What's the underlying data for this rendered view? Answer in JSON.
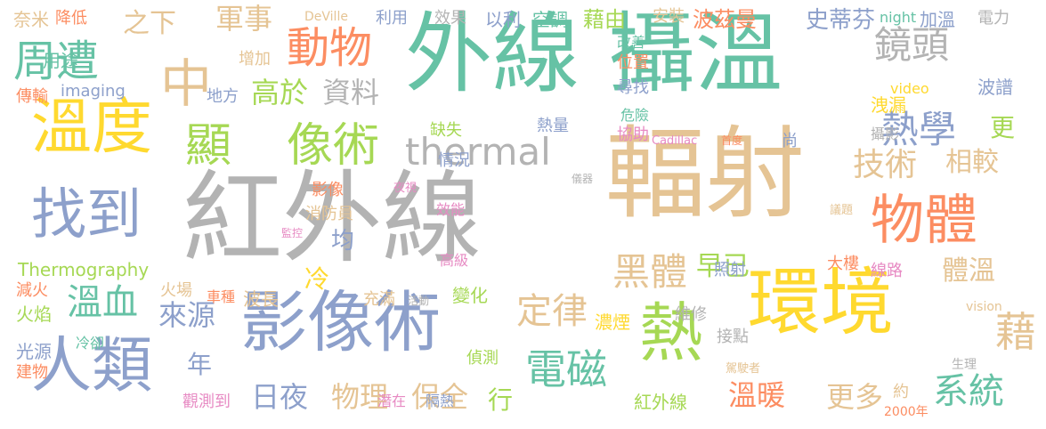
{
  "palette": {
    "green": "#66c2a5",
    "orange": "#fc8d62",
    "blue": "#8da0cb",
    "pink": "#e78ac3",
    "lime": "#a6d854",
    "yellow": "#ffd92f",
    "tan": "#e5c494",
    "gray": "#b3b3b3"
  },
  "words": [
    {
      "text": "紅外線",
      "color": "#b3b3b3"
    },
    {
      "text": "外線",
      "color": "#66c2a5"
    },
    {
      "text": "攝溫",
      "color": "#66c2a5"
    },
    {
      "text": "輻射",
      "color": "#e5c494"
    },
    {
      "text": "環境",
      "color": "#ffd92f"
    },
    {
      "text": "影像術",
      "color": "#8da0cb"
    },
    {
      "text": "人類",
      "color": "#8da0cb"
    },
    {
      "text": "溫度",
      "color": "#ffd92f"
    },
    {
      "text": "熱",
      "color": "#a6d854"
    },
    {
      "text": "物體",
      "color": "#fc8d62"
    },
    {
      "text": "找到",
      "color": "#8da0cb"
    },
    {
      "text": "中",
      "color": "#e5c494"
    },
    {
      "text": "顯",
      "color": "#a6d854"
    },
    {
      "text": "像術",
      "color": "#a6d854"
    },
    {
      "text": "thermal",
      "color": "#b3b3b3"
    },
    {
      "text": "周遭",
      "color": "#66c2a5"
    },
    {
      "text": "動物",
      "color": "#fc8d62"
    },
    {
      "text": "鏡頭",
      "color": "#b3b3b3"
    },
    {
      "text": "熱學",
      "color": "#8da0cb"
    },
    {
      "text": "技術",
      "color": "#e5c494"
    },
    {
      "text": "黑體",
      "color": "#e5c494"
    },
    {
      "text": "定律",
      "color": "#e5c494"
    },
    {
      "text": "電磁",
      "color": "#66c2a5"
    },
    {
      "text": "溫血",
      "color": "#66c2a5"
    },
    {
      "text": "系統",
      "color": "#66c2a5"
    },
    {
      "text": "軍事",
      "color": "#e5c494"
    },
    {
      "text": "高於",
      "color": "#a6d854"
    },
    {
      "text": "資料",
      "color": "#b3b3b3"
    },
    {
      "text": "來源",
      "color": "#8da0cb"
    },
    {
      "text": "日夜",
      "color": "#8da0cb"
    },
    {
      "text": "物理",
      "color": "#e5c494"
    },
    {
      "text": "保全",
      "color": "#e5c494"
    },
    {
      "text": "藉",
      "color": "#e5c494"
    },
    {
      "text": "更多",
      "color": "#e5c494"
    },
    {
      "text": "溫暖",
      "color": "#fc8d62"
    },
    {
      "text": "相較",
      "color": "#e5c494"
    },
    {
      "text": "早已",
      "color": "#a6d854"
    },
    {
      "text": "體溫",
      "color": "#e5c494"
    },
    {
      "text": "更",
      "color": "#a6d854"
    },
    {
      "text": "之下",
      "color": "#e5c494"
    },
    {
      "text": "年",
      "color": "#8da0cb"
    },
    {
      "text": "行",
      "color": "#a6d854"
    },
    {
      "text": "冷",
      "color": "#ffd92f"
    },
    {
      "text": "均",
      "color": "#8da0cb"
    },
    {
      "text": "奈米",
      "color": "#e5c494"
    },
    {
      "text": "降低",
      "color": "#fc8d62"
    },
    {
      "text": "DeVille",
      "color": "#e5c494"
    },
    {
      "text": "利用",
      "color": "#8da0cb"
    },
    {
      "text": "效果",
      "color": "#b3b3b3"
    },
    {
      "text": "以利",
      "color": "#8da0cb"
    },
    {
      "text": "空調",
      "color": "#66c2a5"
    },
    {
      "text": "藉由",
      "color": "#a6d854"
    },
    {
      "text": "安裝",
      "color": "#e5c494"
    },
    {
      "text": "波茲曼",
      "color": "#fc8d62"
    },
    {
      "text": "史蒂芬",
      "color": "#8da0cb"
    },
    {
      "text": "night",
      "color": "#66c2a5"
    },
    {
      "text": "加溫",
      "color": "#8da0cb"
    },
    {
      "text": "電力",
      "color": "#b3b3b3"
    },
    {
      "text": "用途",
      "color": "#66c2a5"
    },
    {
      "text": "增加",
      "color": "#e5c494"
    },
    {
      "text": "改善",
      "color": "#66c2a5"
    },
    {
      "text": "位置",
      "color": "#fc8d62"
    },
    {
      "text": "傳輸",
      "color": "#fc8d62"
    },
    {
      "text": "imaging",
      "color": "#8da0cb"
    },
    {
      "text": "地方",
      "color": "#8da0cb"
    },
    {
      "text": "尋找",
      "color": "#8da0cb"
    },
    {
      "text": "video",
      "color": "#ffd92f"
    },
    {
      "text": "波譜",
      "color": "#8da0cb"
    },
    {
      "text": "洩漏",
      "color": "#ffd92f"
    },
    {
      "text": "危險",
      "color": "#66c2a5"
    },
    {
      "text": "熱量",
      "color": "#8da0cb"
    },
    {
      "text": "缺失",
      "color": "#a6d854"
    },
    {
      "text": "協助",
      "color": "#e78ac3"
    },
    {
      "text": "Cadillac",
      "color": "#e78ac3"
    },
    {
      "text": "首度",
      "color": "#fc8d62"
    },
    {
      "text": "尚",
      "color": "#8da0cb"
    },
    {
      "text": "攝影",
      "color": "#b3b3b3"
    },
    {
      "text": "情況",
      "color": "#8da0cb"
    },
    {
      "text": "影像",
      "color": "#fc8d62"
    },
    {
      "text": "夜視",
      "color": "#e78ac3"
    },
    {
      "text": "儀器",
      "color": "#b3b3b3"
    },
    {
      "text": "效能",
      "color": "#e78ac3"
    },
    {
      "text": "消防員",
      "color": "#e5c494"
    },
    {
      "text": "監控",
      "color": "#e78ac3"
    },
    {
      "text": "議題",
      "color": "#e5c494"
    },
    {
      "text": "Thermography",
      "color": "#a6d854"
    },
    {
      "text": "高級",
      "color": "#e78ac3"
    },
    {
      "text": "照射",
      "color": "#8da0cb"
    },
    {
      "text": "大樓",
      "color": "#fc8d62"
    },
    {
      "text": "線路",
      "color": "#e78ac3"
    },
    {
      "text": "減火",
      "color": "#fc8d62"
    },
    {
      "text": "火場",
      "color": "#e5c494"
    },
    {
      "text": "車種",
      "color": "#fc8d62"
    },
    {
      "text": "波長",
      "color": "#e5c494"
    },
    {
      "text": "充滿",
      "color": "#e5c494"
    },
    {
      "text": "活動",
      "color": "#b3b3b3"
    },
    {
      "text": "變化",
      "color": "#a6d854"
    },
    {
      "text": "火焰",
      "color": "#a6d854"
    },
    {
      "text": "vision",
      "color": "#e5c494"
    },
    {
      "text": "濃煙",
      "color": "#ffd92f"
    },
    {
      "text": "維修",
      "color": "#b3b3b3"
    },
    {
      "text": "接點",
      "color": "#b3b3b3"
    },
    {
      "text": "冷卻",
      "color": "#66c2a5"
    },
    {
      "text": "光源",
      "color": "#8da0cb"
    },
    {
      "text": "偵測",
      "color": "#a6d854"
    },
    {
      "text": "建物",
      "color": "#fc8d62"
    },
    {
      "text": "駕駛者",
      "color": "#e5c494"
    },
    {
      "text": "生理",
      "color": "#b3b3b3"
    },
    {
      "text": "約",
      "color": "#e5c494"
    },
    {
      "text": "觀測到",
      "color": "#e78ac3"
    },
    {
      "text": "潛在",
      "color": "#e78ac3"
    },
    {
      "text": "隔熱",
      "color": "#8da0cb"
    },
    {
      "text": "紅外線",
      "color": "#a6d854"
    },
    {
      "text": "2000年",
      "color": "#fc8d62"
    }
  ]
}
